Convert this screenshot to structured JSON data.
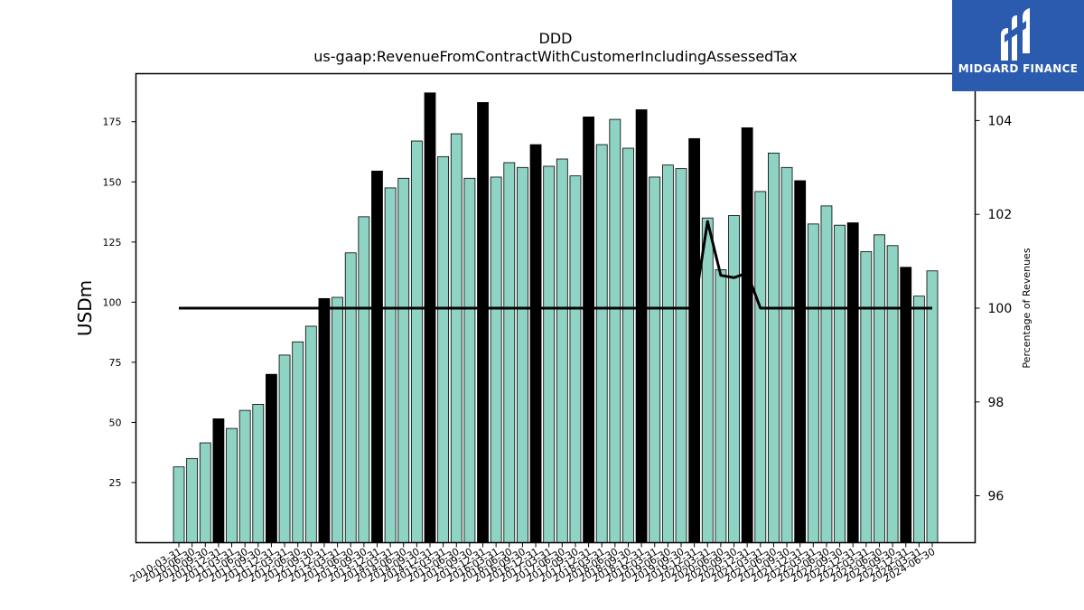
{
  "chart_data": {
    "type": "bar",
    "title": "DDD",
    "subtitle": "us-gaap:RevenueFromContractWithCustomerIncludingAssessedTax",
    "ylabel": "USDm",
    "y2label": "Percentage of Revenues",
    "ylim": [
      0,
      195
    ],
    "y2lim": [
      95,
      105
    ],
    "yticks": [
      25,
      50,
      75,
      100,
      125,
      150,
      175
    ],
    "y2ticks": [
      96,
      98,
      100,
      102,
      104
    ],
    "categories": [
      "2010-03-31",
      "2010-06-30",
      "2010-09-30",
      "2010-12-31",
      "2011-03-31",
      "2011-06-30",
      "2011-09-30",
      "2011-12-31",
      "2012-03-31",
      "2012-06-30",
      "2012-09-30",
      "2012-12-31",
      "2013-03-31",
      "2013-06-30",
      "2013-09-30",
      "2013-12-31",
      "2014-03-31",
      "2014-06-30",
      "2014-09-30",
      "2014-12-31",
      "2015-03-31",
      "2015-06-30",
      "2015-09-30",
      "2015-12-31",
      "2016-03-31",
      "2016-06-30",
      "2016-09-30",
      "2016-12-31",
      "2017-03-31",
      "2017-06-30",
      "2017-09-30",
      "2017-12-31",
      "2018-03-31",
      "2018-06-30",
      "2018-09-30",
      "2018-12-31",
      "2019-03-31",
      "2019-06-30",
      "2019-09-30",
      "2019-12-31",
      "2020-03-31",
      "2020-06-30",
      "2020-09-30",
      "2020-12-31",
      "2021-03-31",
      "2021-06-30",
      "2021-09-30",
      "2021-12-31",
      "2022-03-31",
      "2022-06-30",
      "2022-09-30",
      "2022-12-31",
      "2023-03-31",
      "2023-06-30",
      "2023-09-30",
      "2023-12-31",
      "2024-03-31",
      "2024-06-30"
    ],
    "series": [
      {
        "values": [
          31.5,
          35,
          41.5,
          51.5,
          47.5,
          55,
          57.5,
          70,
          78,
          83.5,
          90,
          101.5,
          102,
          120.5,
          135.5,
          154.5,
          147.5,
          151.5,
          167,
          187,
          160.5,
          170,
          151.5,
          183,
          152,
          158,
          156,
          165.5,
          156.5,
          159.5,
          152.5,
          177,
          165.5,
          176,
          164,
          180,
          152,
          157,
          155.5,
          168,
          135,
          113.5,
          136,
          172.5,
          146,
          162,
          156,
          150.5,
          132.5,
          140,
          132,
          133,
          121,
          128,
          123.5,
          114.5,
          102.5,
          113
        ],
        "highlight": [
          false,
          false,
          false,
          true,
          false,
          false,
          false,
          true,
          false,
          false,
          false,
          true,
          false,
          false,
          false,
          true,
          false,
          false,
          false,
          true,
          false,
          false,
          false,
          true,
          false,
          false,
          false,
          true,
          false,
          false,
          false,
          true,
          false,
          false,
          false,
          true,
          false,
          false,
          false,
          true,
          false,
          false,
          false,
          true,
          false,
          false,
          false,
          true,
          false,
          false,
          false,
          true,
          false,
          false,
          false,
          true,
          false,
          false
        ]
      },
      {
        "axis": "right",
        "type": "line",
        "values": [
          100,
          100,
          100,
          100,
          100,
          100,
          100,
          100,
          100,
          100,
          100,
          100,
          100,
          100,
          100,
          100,
          100,
          100,
          100,
          100,
          100,
          100,
          100,
          100,
          100,
          100,
          100,
          100,
          100,
          100,
          100,
          100,
          100,
          100,
          100,
          100,
          100,
          100,
          100,
          100,
          101.85,
          100.7,
          100.65,
          100.75,
          100,
          100,
          100,
          100,
          100,
          100,
          100,
          100,
          100,
          100,
          100,
          100,
          100,
          100
        ]
      }
    ],
    "colors": {
      "bar": "#8ed3c4",
      "bar_highlight": "#000000",
      "edge": "#000000",
      "line": "#000000"
    }
  },
  "logo": {
    "text": "MIDGARD FINANCE",
    "background": "#2a5bae"
  }
}
